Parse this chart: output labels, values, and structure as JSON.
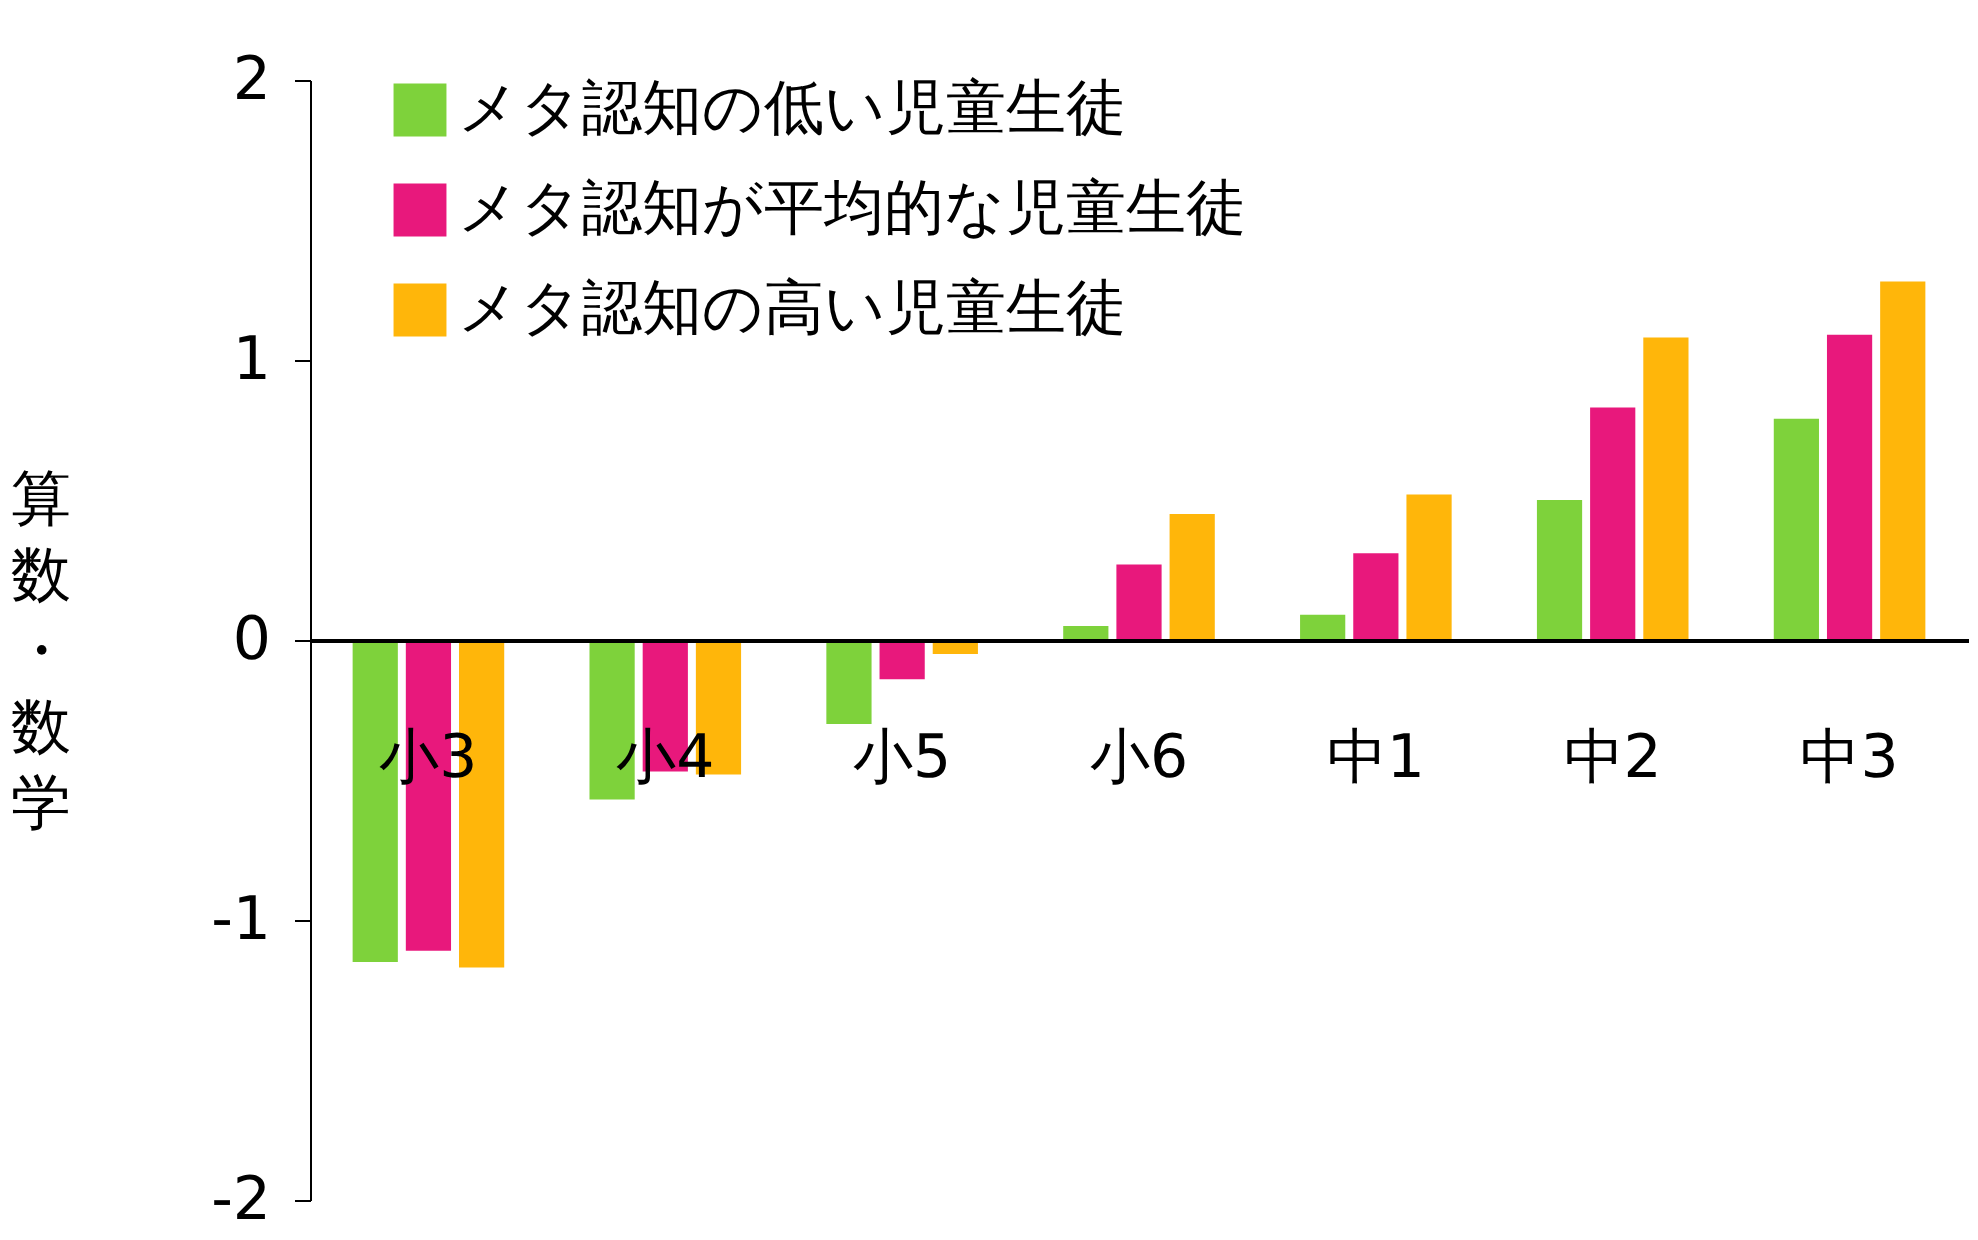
{
  "chart_data": {
    "type": "bar",
    "ylabel": "算数・数学",
    "categories": [
      "小3",
      "小4",
      "小5",
      "小6",
      "中1",
      "中2",
      "中3"
    ],
    "series": [
      {
        "name": "メタ認知の低い児童生徒",
        "color": "#7ed23b",
        "values": [
          -1.15,
          -0.57,
          -0.3,
          0.05,
          0.09,
          0.5,
          0.79
        ]
      },
      {
        "name": "メタ認知が平均的な児童生徒",
        "color": "#e8187c",
        "values": [
          -1.11,
          -0.47,
          -0.14,
          0.27,
          0.31,
          0.83,
          1.09
        ]
      },
      {
        "name": "メタ認知の高い児童生徒",
        "color": "#ffb60a",
        "values": [
          -1.17,
          -0.48,
          -0.05,
          0.45,
          0.52,
          1.08,
          1.28
        ]
      }
    ],
    "ylim": [
      -2,
      2
    ],
    "yticks": [
      -2,
      -1,
      0,
      1,
      2
    ],
    "grid": false,
    "legend": "top left"
  }
}
